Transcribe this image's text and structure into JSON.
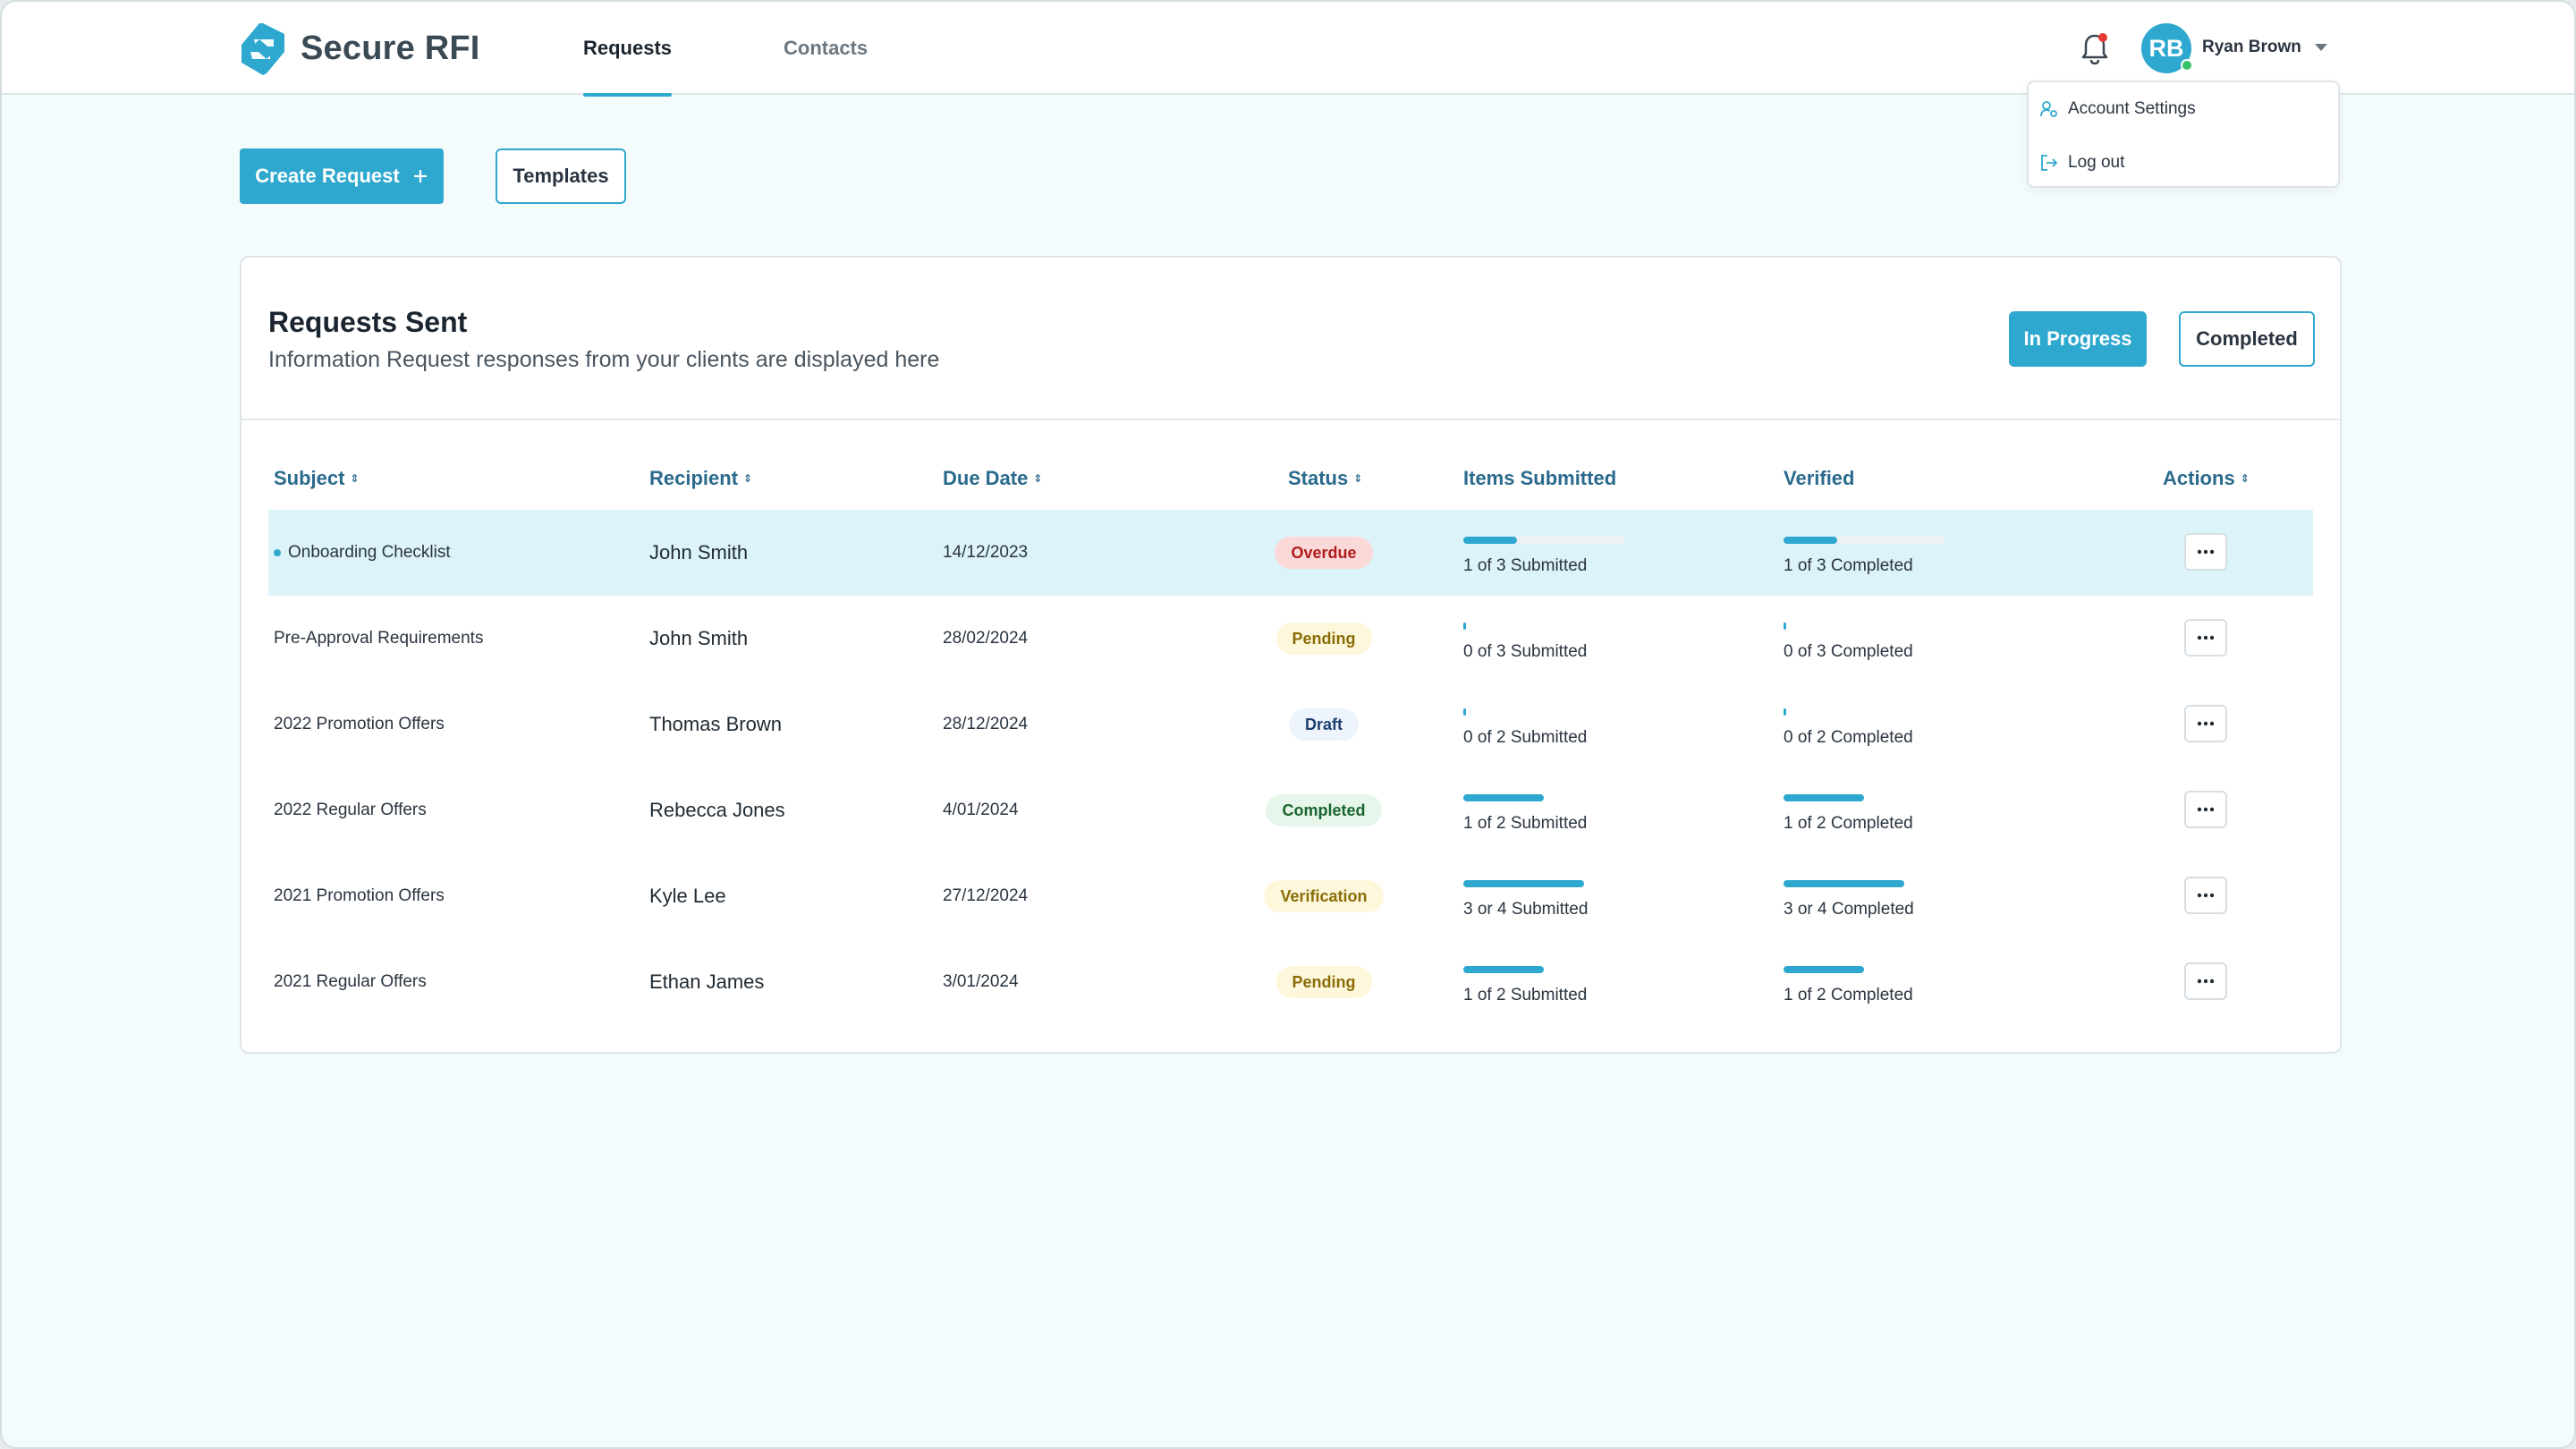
{
  "app": {
    "name": "Secure RFI",
    "brand_color": "#2ea8cf"
  },
  "nav": {
    "tabs": [
      {
        "label": "Requests",
        "active": true
      },
      {
        "label": "Contacts",
        "active": false
      }
    ]
  },
  "user": {
    "initials": "RB",
    "name": "Ryan Brown",
    "menu": [
      {
        "label": "Account Settings",
        "icon": "user-settings-icon"
      },
      {
        "label": "Log out",
        "icon": "logout-icon"
      }
    ]
  },
  "toolbar": {
    "create_label": "Create Request",
    "templates_label": "Templates"
  },
  "card": {
    "title": "Requests Sent",
    "subtitle": "Information Request responses from your clients are displayed here",
    "filter_in_progress": "In Progress",
    "filter_completed": "Completed"
  },
  "table": {
    "headers": {
      "subject": "Subject",
      "recipient": "Recipient",
      "due_date": "Due Date",
      "status": "Status",
      "items_submitted": "Items Submitted",
      "verified": "Verified",
      "actions": "Actions"
    },
    "rows": [
      {
        "subject": "Onboarding Checklist",
        "recipient": "John Smith",
        "due": "14/12/2023",
        "status": "Overdue",
        "status_kind": "overdue",
        "submitted_label": "1 of 3 Submitted",
        "submitted_fraction": 0.333,
        "verified_label": "1 of 3 Completed",
        "verified_fraction": 0.333,
        "unread": true
      },
      {
        "subject": "Pre-Approval Requirements",
        "recipient": "John Smith",
        "due": "28/02/2024",
        "status": "Pending",
        "status_kind": "pending",
        "submitted_label": "0 of 3 Submitted",
        "submitted_fraction": 0,
        "verified_label": "0 of 3 Completed",
        "verified_fraction": 0
      },
      {
        "subject": "2022 Promotion Offers",
        "recipient": "Thomas Brown",
        "due": "28/12/2024",
        "status": "Draft",
        "status_kind": "draft",
        "submitted_label": "0 of 2 Submitted",
        "submitted_fraction": 0,
        "verified_label": "0 of 2 Completed",
        "verified_fraction": 0
      },
      {
        "subject": "2022 Regular Offers",
        "recipient": "Rebecca Jones",
        "due": "4/01/2024",
        "status": "Completed",
        "status_kind": "completed",
        "submitted_label": "1 of 2 Submitted",
        "submitted_fraction": 0.5,
        "verified_label": "1 of 2 Completed",
        "verified_fraction": 0.5
      },
      {
        "subject": "2021 Promotion Offers",
        "recipient": "Kyle Lee",
        "due": "27/12/2024",
        "status": "Verification",
        "status_kind": "verification",
        "submitted_label": "3 or 4 Submitted",
        "submitted_fraction": 0.75,
        "verified_label": "3 or 4 Completed",
        "verified_fraction": 0.75
      },
      {
        "subject": "2021 Regular Offers",
        "recipient": "Ethan James",
        "due": "3/01/2024",
        "status": "Pending",
        "status_kind": "pending",
        "submitted_label": "1 of 2 Submitted",
        "submitted_fraction": 0.5,
        "verified_label": "1 of 2 Completed",
        "verified_fraction": 0.5
      }
    ]
  }
}
